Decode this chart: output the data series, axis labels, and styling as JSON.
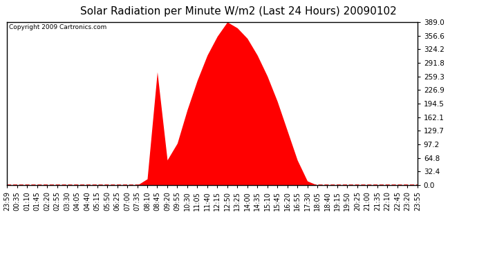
{
  "title": "Solar Radiation per Minute W/m2 (Last 24 Hours) 20090102",
  "copyright": "Copyright 2009 Cartronics.com",
  "bg_color": "#ffffff",
  "plot_bg_color": "#ffffff",
  "fill_color": "#ff0000",
  "line_color": "#ff0000",
  "dashed_line_color": "#ff0000",
  "grid_color": "#c8c8c8",
  "ymin": 0.0,
  "ymax": 389.0,
  "yticks": [
    0.0,
    32.4,
    64.8,
    97.2,
    129.7,
    162.1,
    194.5,
    226.9,
    259.3,
    291.8,
    324.2,
    356.6,
    389.0
  ],
  "xlabel_fontsize": 7,
  "ylabel_fontsize": 7.5,
  "title_fontsize": 11,
  "x_labels": [
    "23:59",
    "00:35",
    "01:10",
    "01:45",
    "02:20",
    "02:55",
    "03:30",
    "04:05",
    "04:40",
    "05:15",
    "05:50",
    "06:25",
    "07:00",
    "07:35",
    "08:10",
    "08:45",
    "09:20",
    "09:55",
    "10:30",
    "11:05",
    "11:40",
    "12:15",
    "12:50",
    "13:25",
    "14:00",
    "14:35",
    "15:10",
    "15:45",
    "16:20",
    "16:55",
    "17:30",
    "18:05",
    "18:40",
    "19:15",
    "19:50",
    "20:25",
    "21:00",
    "21:35",
    "22:10",
    "22:45",
    "23:20",
    "23:55"
  ],
  "solar_data": [
    0,
    0,
    0,
    0,
    0,
    0,
    0,
    0,
    0,
    0,
    0,
    0,
    0,
    0,
    5,
    30,
    0,
    100,
    180,
    250,
    310,
    355,
    389,
    375,
    350,
    310,
    260,
    200,
    130,
    60,
    10,
    0,
    0,
    0,
    0,
    0,
    0,
    0,
    0,
    0,
    0,
    0
  ],
  "spike_data": [
    0,
    0,
    0,
    0,
    0,
    0,
    0,
    0,
    0,
    0,
    0,
    0,
    0,
    0,
    15,
    270,
    60,
    0,
    0,
    0,
    0,
    0,
    0,
    0,
    0,
    0,
    0,
    0,
    0,
    0,
    0,
    0,
    0,
    0,
    0,
    0,
    0,
    0,
    0,
    0,
    0,
    0
  ]
}
